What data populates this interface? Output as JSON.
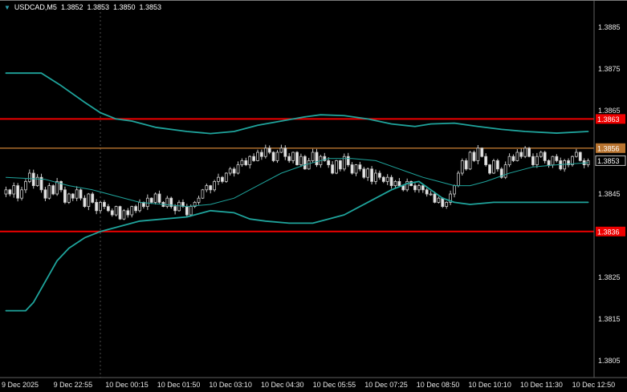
{
  "window": {
    "dropdown_icon": "▼",
    "symbol_timeframe": "USDCAD,M5",
    "quote_open": "1.3852",
    "quote_high": "1.3853",
    "quote_low": "1.3850",
    "quote_close": "1.3853"
  },
  "colors": {
    "background": "#000000",
    "band": "#1fa49c",
    "level_red": "#ee0000",
    "level_orange": "#b9742f",
    "axis_text": "#e6e6e6",
    "axis_line": "#5f5f5f",
    "separator": "#4c4c4c",
    "candle_outline": "#c9c9c9",
    "candle_up_fill": "#000000",
    "candle_down_fill": "#e4e4e4",
    "current_label_bg": "#000000",
    "current_label_border": "#c0c0c0",
    "label_text": "#ffffff",
    "title_text": "#ffffff",
    "dropdown_icon_color": "#2e9fae"
  },
  "y_axis": {
    "ticks": [
      1.3885,
      1.3875,
      1.3865,
      1.3845,
      1.3825,
      1.3815,
      1.3805
    ]
  },
  "x_axis": {
    "labels": [
      "9 Dec 2025",
      "9 Dec 22:55",
      "10 Dec 00:15",
      "10 Dec 01:50",
      "10 Dec 03:10",
      "10 Dec 04:30",
      "10 Dec 05:55",
      "10 Dec 07:25",
      "10 Dec 08:50",
      "10 Dec 10:10",
      "10 Dec 11:30",
      "10 Dec 12:50"
    ]
  },
  "levels": [
    {
      "name": "resistance-line",
      "price": 1.3863,
      "label": "1.3863",
      "color_key": "level_red",
      "width": 2
    },
    {
      "name": "support-line",
      "price": 1.3836,
      "label": "1.3836",
      "color_key": "level_red",
      "width": 2
    },
    {
      "name": "mid-level-line",
      "price": 1.3856,
      "label": "1.3856",
      "color_key": "level_orange",
      "width": 1.4
    }
  ],
  "current_price": {
    "value": 1.3853,
    "label": "1.3853"
  },
  "chart_data": {
    "type": "candlestick",
    "symbol": "USDCAD",
    "timeframe": "M5",
    "title": "USDCAD,M5 1.3852 1.3853 1.3850 1.3853",
    "visible_price_range": [
      1.3804,
      1.389
    ],
    "indicator": "Bollinger Bands",
    "day_separator_index": 24,
    "first_open": 1.3845,
    "closes": [
      1.3846,
      1.3845,
      1.3847,
      1.3844,
      1.3846,
      1.3848,
      1.385,
      1.3847,
      1.3849,
      1.3846,
      1.3844,
      1.3847,
      1.3845,
      1.3848,
      1.3846,
      1.3843,
      1.3845,
      1.3844,
      1.3846,
      1.3844,
      1.3842,
      1.3845,
      1.3843,
      1.3841,
      1.3843,
      1.3842,
      1.3841,
      1.384,
      1.3842,
      1.3839,
      1.3841,
      1.384,
      1.3842,
      1.3841,
      1.3843,
      1.3842,
      1.3844,
      1.3843,
      1.3845,
      1.3843,
      1.3842,
      1.3844,
      1.3842,
      1.3841,
      1.3843,
      1.3842,
      1.384,
      1.3842,
      1.3843,
      1.3844,
      1.3846,
      1.3847,
      1.3846,
      1.3848,
      1.3849,
      1.3848,
      1.385,
      1.3851,
      1.385,
      1.3852,
      1.3853,
      1.3852,
      1.3854,
      1.3853,
      1.3855,
      1.3854,
      1.3856,
      1.3855,
      1.3853,
      1.3855,
      1.3856,
      1.3854,
      1.3853,
      1.3855,
      1.3852,
      1.3854,
      1.3851,
      1.3853,
      1.3855,
      1.3852,
      1.3854,
      1.3853,
      1.3852,
      1.385,
      1.3853,
      1.3851,
      1.3854,
      1.3852,
      1.385,
      1.3852,
      1.3851,
      1.3849,
      1.3851,
      1.3848,
      1.385,
      1.3849,
      1.3848,
      1.3849,
      1.3847,
      1.3848,
      1.3847,
      1.3846,
      1.3848,
      1.3847,
      1.3846,
      1.3847,
      1.3846,
      1.3845,
      1.3845,
      1.3843,
      1.3844,
      1.3842,
      1.3843,
      1.3845,
      1.3847,
      1.385,
      1.3853,
      1.3851,
      1.3855,
      1.3853,
      1.3856,
      1.3854,
      1.3852,
      1.385,
      1.3853,
      1.3851,
      1.3849,
      1.3852,
      1.3854,
      1.3853,
      1.3855,
      1.3854,
      1.3856,
      1.3854,
      1.3852,
      1.3854,
      1.3855,
      1.3853,
      1.3852,
      1.3854,
      1.3853,
      1.3851,
      1.3853,
      1.3852,
      1.3854,
      1.3855,
      1.3853,
      1.3852,
      1.3853
    ],
    "bands": {
      "upper": [
        [
          0,
          1.3874
        ],
        [
          9,
          1.3874
        ],
        [
          14,
          1.3871
        ],
        [
          20,
          1.3867
        ],
        [
          24,
          1.38645
        ],
        [
          28,
          1.3863
        ],
        [
          32,
          1.38625
        ],
        [
          38,
          1.3861
        ],
        [
          46,
          1.386
        ],
        [
          52,
          1.38595
        ],
        [
          58,
          1.386
        ],
        [
          64,
          1.38615
        ],
        [
          70,
          1.38625
        ],
        [
          76,
          1.38635
        ],
        [
          80,
          1.3864
        ],
        [
          86,
          1.38638
        ],
        [
          92,
          1.3863
        ],
        [
          98,
          1.38618
        ],
        [
          104,
          1.38612
        ],
        [
          108,
          1.38618
        ],
        [
          114,
          1.3862
        ],
        [
          120,
          1.38612
        ],
        [
          126,
          1.38605
        ],
        [
          132,
          1.386
        ],
        [
          140,
          1.38596
        ],
        [
          148,
          1.386
        ]
      ],
      "middle": [
        [
          0,
          1.3849
        ],
        [
          10,
          1.38485
        ],
        [
          16,
          1.3847
        ],
        [
          22,
          1.3846
        ],
        [
          28,
          1.38445
        ],
        [
          34,
          1.3843
        ],
        [
          40,
          1.38425
        ],
        [
          46,
          1.3842
        ],
        [
          52,
          1.38425
        ],
        [
          58,
          1.3844
        ],
        [
          64,
          1.3847
        ],
        [
          70,
          1.385
        ],
        [
          76,
          1.3852
        ],
        [
          82,
          1.38535
        ],
        [
          88,
          1.38535
        ],
        [
          94,
          1.3853
        ],
        [
          100,
          1.3851
        ],
        [
          106,
          1.3849
        ],
        [
          110,
          1.3848
        ],
        [
          114,
          1.3847
        ],
        [
          118,
          1.3847
        ],
        [
          122,
          1.3848
        ],
        [
          128,
          1.385
        ],
        [
          134,
          1.38515
        ],
        [
          140,
          1.3852
        ],
        [
          148,
          1.38525
        ]
      ],
      "lower": [
        [
          0,
          1.3817
        ],
        [
          5,
          1.3817
        ],
        [
          7,
          1.3819
        ],
        [
          10,
          1.3824
        ],
        [
          13,
          1.3829
        ],
        [
          16,
          1.3832
        ],
        [
          20,
          1.38345
        ],
        [
          24,
          1.3836
        ],
        [
          28,
          1.3837
        ],
        [
          34,
          1.38385
        ],
        [
          40,
          1.3839
        ],
        [
          46,
          1.38395
        ],
        [
          52,
          1.3841
        ],
        [
          58,
          1.38405
        ],
        [
          62,
          1.3839
        ],
        [
          66,
          1.38385
        ],
        [
          72,
          1.3838
        ],
        [
          78,
          1.3838
        ],
        [
          82,
          1.3839
        ],
        [
          86,
          1.384
        ],
        [
          90,
          1.3842
        ],
        [
          94,
          1.3844
        ],
        [
          98,
          1.3846
        ],
        [
          102,
          1.38475
        ],
        [
          105,
          1.3848
        ],
        [
          108,
          1.3846
        ],
        [
          111,
          1.3844
        ],
        [
          114,
          1.3843
        ],
        [
          118,
          1.38425
        ],
        [
          124,
          1.3843
        ],
        [
          140,
          1.3843
        ],
        [
          148,
          1.3843
        ]
      ]
    }
  }
}
